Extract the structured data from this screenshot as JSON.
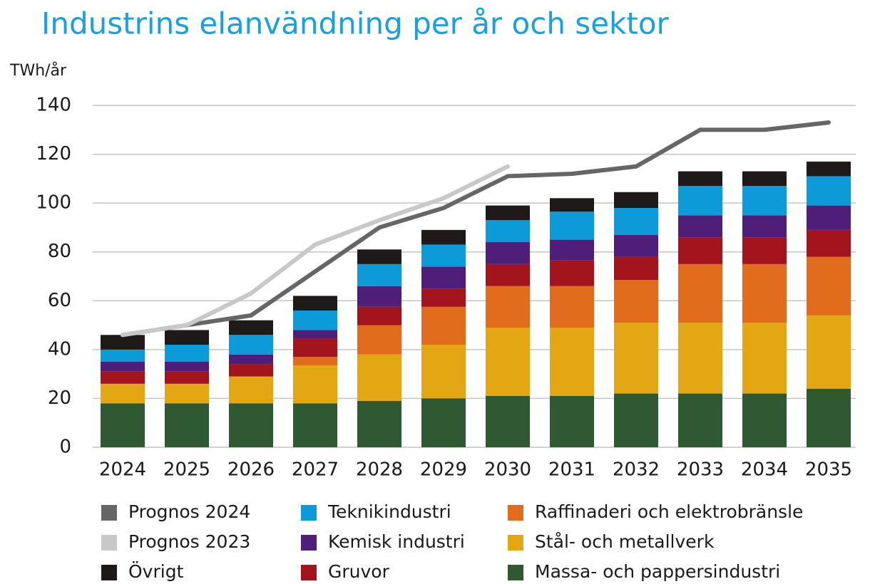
{
  "chart_data": {
    "type": "bar",
    "title": "Industrins elanvändning per år och sektor",
    "y_label": "TWh/år",
    "stacked": true,
    "grid": true,
    "categories": [
      "2024",
      "2025",
      "2026",
      "2027",
      "2028",
      "2029",
      "2030",
      "2031",
      "2032",
      "2033",
      "2034",
      "2035"
    ],
    "ylim": [
      0,
      140
    ],
    "yticks": [
      0,
      20,
      40,
      60,
      80,
      100,
      120,
      140
    ],
    "series": [
      {
        "name": "Prognos 2024",
        "kind": "line",
        "color": "#666666",
        "values": [
          46,
          50,
          54,
          72,
          90,
          98,
          111,
          112,
          115,
          130,
          130,
          133
        ]
      },
      {
        "name": "Prognos 2023",
        "kind": "line",
        "color": "#c8c8c8",
        "values": [
          46,
          50,
          63,
          83,
          93,
          102,
          115,
          null,
          null,
          null,
          null,
          null
        ]
      },
      {
        "name": "Övrigt",
        "kind": "bar",
        "color": "#1e1a1a",
        "values": [
          6,
          6,
          6,
          6,
          6,
          6,
          6,
          5.5,
          6.5,
          6,
          6,
          6
        ]
      },
      {
        "name": "Teknikindustri",
        "kind": "bar",
        "color": "#0d9ad9",
        "values": [
          5,
          7,
          8,
          8,
          9,
          9,
          9,
          11.5,
          11,
          12,
          12,
          12
        ]
      },
      {
        "name": "Kemisk industri",
        "kind": "bar",
        "color": "#4f1e79",
        "values": [
          4,
          4,
          4,
          3.5,
          8.5,
          9,
          9,
          8.5,
          9,
          9,
          9,
          10
        ]
      },
      {
        "name": "Gruvor",
        "kind": "bar",
        "color": "#a3141d",
        "values": [
          5,
          5,
          5,
          7.5,
          7.5,
          7.5,
          9,
          10.5,
          9.5,
          11,
          11,
          11
        ]
      },
      {
        "name": "Raffinaderi och elektrobränsle",
        "kind": "bar",
        "color": "#e06c1c",
        "values": [
          0,
          0,
          0,
          3.5,
          12,
          15.5,
          17,
          17,
          17.5,
          24,
          24,
          24
        ]
      },
      {
        "name": "Stål- och metallverk",
        "kind": "bar",
        "color": "#e3a714",
        "values": [
          8,
          8,
          11,
          15.5,
          19,
          22,
          28,
          28,
          29,
          29,
          29,
          30
        ]
      },
      {
        "name": "Massa- och pappersindustri",
        "kind": "bar",
        "color": "#2f5a31",
        "values": [
          18,
          18,
          18,
          18,
          19,
          20,
          21,
          21,
          22,
          22,
          22,
          24
        ]
      }
    ]
  }
}
